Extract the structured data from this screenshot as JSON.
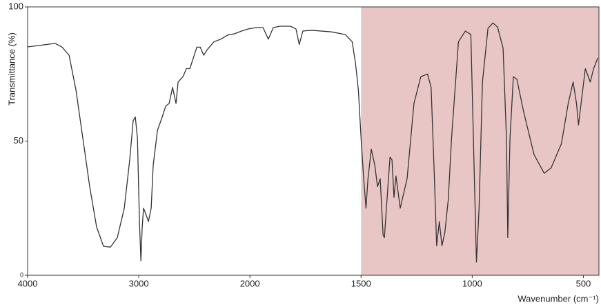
{
  "chart_data": {
    "type": "line",
    "x_label": "Wavenumber (cm⁻¹)",
    "y_label": "Transmittance (%)",
    "xlim": [
      4000,
      430
    ],
    "xticks": [
      4000,
      3000,
      2000,
      1500,
      1000,
      500
    ],
    "xscale": {
      "break": 2000,
      "factor": 2
    },
    "ylim": [
      0,
      100
    ],
    "yticks": [
      0,
      50,
      100
    ],
    "shaded_region": {
      "xlim": [
        1500,
        430
      ],
      "color": "#e9c6c6"
    },
    "series": [
      {
        "color": "#333333",
        "x": [
          4000,
          3752,
          3689,
          3627,
          3565,
          3503,
          3441,
          3379,
          3317,
          3255,
          3193,
          3130,
          3081,
          3050,
          3031,
          3012,
          2994,
          2981,
          2969,
          2957,
          2938,
          2913,
          2888,
          2870,
          2832,
          2789,
          2758,
          2727,
          2696,
          2665,
          2646,
          2602,
          2571,
          2540,
          2509,
          2478,
          2447,
          2416,
          2385,
          2323,
          2261,
          2199,
          2137,
          2075,
          2012,
          1972,
          1941,
          1917,
          1895,
          1864,
          1818,
          1793,
          1778,
          1762,
          1725,
          1633,
          1571,
          1540,
          1525,
          1512,
          1500,
          1488,
          1478,
          1469,
          1454,
          1438,
          1426,
          1414,
          1401,
          1395,
          1386,
          1370,
          1361,
          1352,
          1343,
          1324,
          1293,
          1262,
          1231,
          1201,
          1185,
          1170,
          1160,
          1148,
          1136,
          1123,
          1108,
          1093,
          1062,
          1031,
          1006,
          991,
          981,
          969,
          954,
          929,
          907,
          886,
          861,
          846,
          840,
          830,
          815,
          799,
          769,
          722,
          676,
          645,
          599,
          568,
          546,
          531,
          522,
          506,
          491,
          469,
          454,
          435
        ],
        "values": [
          85.1,
          86.4,
          85,
          82,
          69,
          51,
          33,
          18,
          10.8,
          10.5,
          14,
          25,
          43,
          57.6,
          59,
          51,
          20,
          5.4,
          18,
          25,
          23,
          20,
          25,
          41,
          54,
          59,
          63,
          64,
          70,
          64,
          72,
          74,
          77,
          77,
          81,
          85,
          85,
          82,
          84,
          87,
          88,
          89.5,
          90,
          91,
          91.8,
          92.3,
          92.3,
          88,
          92.3,
          92.8,
          92.8,
          91.8,
          86,
          91,
          91.3,
          90.7,
          89.7,
          87,
          79,
          69,
          51,
          36,
          25,
          36,
          47,
          41,
          33,
          36,
          15,
          14,
          25,
          44,
          43,
          29,
          37,
          25,
          36,
          64,
          74,
          75,
          70,
          36,
          11,
          20,
          11,
          16,
          28,
          51,
          87,
          91,
          89.7,
          38,
          4.9,
          25,
          72,
          92,
          94,
          92.5,
          84.6,
          51,
          14,
          51,
          74,
          73,
          61,
          45,
          38,
          40,
          49,
          64,
          72,
          64,
          56,
          67,
          77,
          72,
          77,
          81
        ]
      }
    ]
  }
}
